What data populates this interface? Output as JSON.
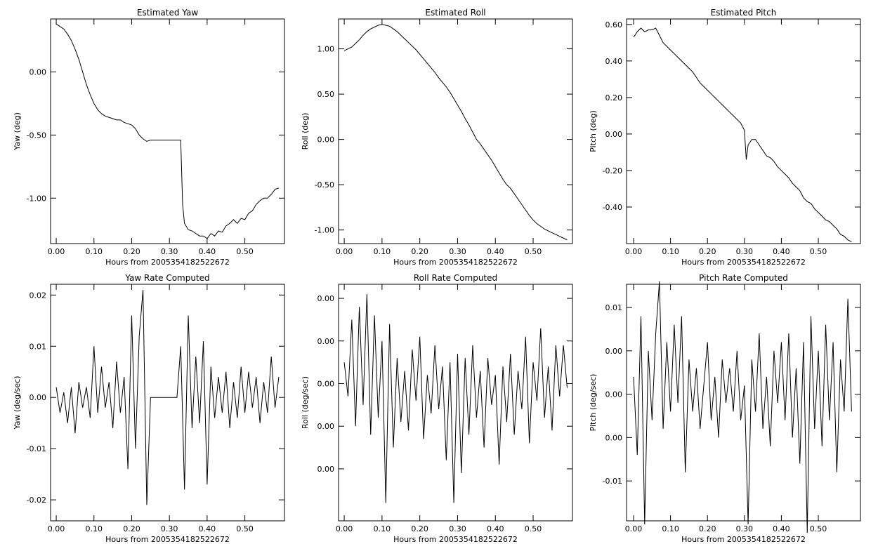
{
  "chart_data": [
    {
      "type": "line",
      "title": "Estimated Yaw",
      "xlabel": "Hours from 2005354182522672",
      "ylabel": "Yaw (deg)",
      "color": "#000000",
      "x": [
        0,
        0.01,
        0.02,
        0.03,
        0.04,
        0.05,
        0.06,
        0.07,
        0.08,
        0.09,
        0.1,
        0.11,
        0.12,
        0.13,
        0.14,
        0.15,
        0.16,
        0.17,
        0.18,
        0.19,
        0.2,
        0.21,
        0.22,
        0.23,
        0.24,
        0.25,
        0.26,
        0.27,
        0.28,
        0.29,
        0.3,
        0.31,
        0.32,
        0.33,
        0.335,
        0.34,
        0.35,
        0.36,
        0.37,
        0.38,
        0.39,
        0.4,
        0.41,
        0.42,
        0.43,
        0.44,
        0.45,
        0.46,
        0.47,
        0.48,
        0.49,
        0.5,
        0.51,
        0.52,
        0.53,
        0.54,
        0.55,
        0.56,
        0.57,
        0.58,
        0.59
      ],
      "values": [
        0.38,
        0.36,
        0.34,
        0.3,
        0.25,
        0.18,
        0.1,
        0.0,
        -0.1,
        -0.18,
        -0.25,
        -0.3,
        -0.33,
        -0.35,
        -0.36,
        -0.37,
        -0.38,
        -0.38,
        -0.4,
        -0.41,
        -0.42,
        -0.45,
        -0.5,
        -0.53,
        -0.55,
        -0.54,
        -0.54,
        -0.54,
        -0.54,
        -0.54,
        -0.54,
        -0.54,
        -0.54,
        -0.54,
        -1.05,
        -1.2,
        -1.25,
        -1.26,
        -1.28,
        -1.3,
        -1.3,
        -1.32,
        -1.28,
        -1.3,
        -1.26,
        -1.27,
        -1.22,
        -1.2,
        -1.17,
        -1.2,
        -1.16,
        -1.17,
        -1.12,
        -1.1,
        -1.05,
        -1.02,
        -1.0,
        -1.0,
        -0.97,
        -0.93,
        -0.92
      ],
      "xlim": [
        -0.015,
        0.605
      ],
      "ylim": [
        -1.36,
        0.42
      ],
      "xticks": [
        {
          "value": 0,
          "label": "0.00"
        },
        {
          "value": 0.1,
          "label": "0.10"
        },
        {
          "value": 0.2,
          "label": "0.20"
        },
        {
          "value": 0.3,
          "label": "0.30"
        },
        {
          "value": 0.4,
          "label": "0.40"
        },
        {
          "value": 0.5,
          "label": "0.50"
        }
      ],
      "yticks": [
        {
          "value": 0,
          "label": "0.00"
        },
        {
          "value": -0.5,
          "label": "-0.50"
        },
        {
          "value": -1,
          "label": "-1.00"
        }
      ]
    },
    {
      "type": "line",
      "title": "Estimated Roll",
      "xlabel": "Hours from 2005354182522672",
      "ylabel": "Roll (deg)",
      "color": "#000000",
      "x": [
        0,
        0.01,
        0.02,
        0.03,
        0.04,
        0.05,
        0.06,
        0.07,
        0.08,
        0.09,
        0.1,
        0.11,
        0.12,
        0.13,
        0.14,
        0.15,
        0.16,
        0.17,
        0.18,
        0.19,
        0.2,
        0.21,
        0.22,
        0.23,
        0.24,
        0.25,
        0.26,
        0.27,
        0.28,
        0.29,
        0.3,
        0.31,
        0.32,
        0.33,
        0.34,
        0.35,
        0.36,
        0.37,
        0.38,
        0.39,
        0.4,
        0.41,
        0.42,
        0.43,
        0.44,
        0.45,
        0.46,
        0.47,
        0.48,
        0.49,
        0.5,
        0.51,
        0.52,
        0.53,
        0.54,
        0.55,
        0.56,
        0.57,
        0.58,
        0.59
      ],
      "values": [
        0.98,
        1.0,
        1.02,
        1.06,
        1.1,
        1.15,
        1.19,
        1.22,
        1.24,
        1.26,
        1.27,
        1.26,
        1.25,
        1.22,
        1.19,
        1.15,
        1.11,
        1.07,
        1.03,
        0.99,
        0.94,
        0.89,
        0.84,
        0.79,
        0.74,
        0.68,
        0.63,
        0.58,
        0.52,
        0.45,
        0.38,
        0.31,
        0.23,
        0.16,
        0.08,
        0.0,
        -0.05,
        -0.11,
        -0.17,
        -0.23,
        -0.3,
        -0.37,
        -0.44,
        -0.5,
        -0.54,
        -0.6,
        -0.66,
        -0.72,
        -0.78,
        -0.84,
        -0.89,
        -0.93,
        -0.96,
        -0.99,
        -1.01,
        -1.03,
        -1.05,
        -1.07,
        -1.09,
        -1.11
      ],
      "xlim": [
        -0.015,
        0.604
      ],
      "ylim": [
        -1.15,
        1.33
      ],
      "xticks": [
        {
          "value": 0,
          "label": "0.00"
        },
        {
          "value": 0.1,
          "label": "0.10"
        },
        {
          "value": 0.2,
          "label": "0.20"
        },
        {
          "value": 0.3,
          "label": "0.30"
        },
        {
          "value": 0.4,
          "label": "0.40"
        },
        {
          "value": 0.5,
          "label": "0.50"
        }
      ],
      "yticks": [
        {
          "value": 1,
          "label": "1.00"
        },
        {
          "value": 0.5,
          "label": "0.50"
        },
        {
          "value": 0,
          "label": "0.00"
        },
        {
          "value": -0.5,
          "label": "-0.50"
        },
        {
          "value": -1,
          "label": "-1.00"
        }
      ]
    },
    {
      "type": "line",
      "title": "Estimated Pitch",
      "xlabel": "Hours from 2005354182522672",
      "ylabel": "Pitch (deg)",
      "color": "#000000",
      "x": [
        0,
        0.01,
        0.02,
        0.03,
        0.04,
        0.05,
        0.06,
        0.07,
        0.08,
        0.09,
        0.1,
        0.11,
        0.12,
        0.13,
        0.14,
        0.15,
        0.16,
        0.17,
        0.18,
        0.19,
        0.2,
        0.21,
        0.22,
        0.23,
        0.24,
        0.25,
        0.26,
        0.27,
        0.28,
        0.29,
        0.3,
        0.305,
        0.31,
        0.32,
        0.33,
        0.34,
        0.35,
        0.36,
        0.37,
        0.38,
        0.39,
        0.4,
        0.41,
        0.42,
        0.43,
        0.44,
        0.45,
        0.46,
        0.47,
        0.48,
        0.49,
        0.5,
        0.51,
        0.52,
        0.53,
        0.54,
        0.55,
        0.56,
        0.57,
        0.58,
        0.59
      ],
      "values": [
        0.53,
        0.56,
        0.58,
        0.56,
        0.57,
        0.57,
        0.58,
        0.54,
        0.5,
        0.48,
        0.46,
        0.44,
        0.42,
        0.4,
        0.38,
        0.36,
        0.34,
        0.31,
        0.28,
        0.26,
        0.24,
        0.22,
        0.2,
        0.18,
        0.16,
        0.14,
        0.12,
        0.1,
        0.08,
        0.06,
        0.02,
        -0.14,
        -0.06,
        -0.03,
        -0.03,
        -0.06,
        -0.09,
        -0.12,
        -0.13,
        -0.15,
        -0.18,
        -0.2,
        -0.22,
        -0.24,
        -0.27,
        -0.29,
        -0.31,
        -0.35,
        -0.37,
        -0.38,
        -0.41,
        -0.43,
        -0.45,
        -0.47,
        -0.48,
        -0.5,
        -0.52,
        -0.55,
        -0.56,
        -0.58,
        -0.59
      ],
      "xlim": [
        -0.019,
        0.614
      ],
      "ylim": [
        -0.6,
        0.63
      ],
      "xticks": [
        {
          "value": 0,
          "label": "0.00"
        },
        {
          "value": 0.1,
          "label": "0.10"
        },
        {
          "value": 0.2,
          "label": "0.20"
        },
        {
          "value": 0.3,
          "label": "0.30"
        },
        {
          "value": 0.4,
          "label": "0.40"
        },
        {
          "value": 0.5,
          "label": "0.50"
        }
      ],
      "yticks": [
        {
          "value": 0.6,
          "label": "0.60"
        },
        {
          "value": 0.4,
          "label": "0.40"
        },
        {
          "value": 0.2,
          "label": "0.20"
        },
        {
          "value": 0,
          "label": "0.00"
        },
        {
          "value": -0.2,
          "label": "-0.20"
        },
        {
          "value": -0.4,
          "label": "-0.40"
        }
      ]
    },
    {
      "type": "line",
      "title": "Yaw Rate Computed",
      "xlabel": "Hours from 2005354182522672",
      "ylabel": "Yaw (deg/sec)",
      "color": "#000000",
      "x": [
        0,
        0.01,
        0.02,
        0.03,
        0.04,
        0.05,
        0.06,
        0.07,
        0.08,
        0.09,
        0.1,
        0.11,
        0.12,
        0.13,
        0.14,
        0.15,
        0.16,
        0.17,
        0.18,
        0.19,
        0.2,
        0.21,
        0.22,
        0.23,
        0.24,
        0.25,
        0.26,
        0.27,
        0.28,
        0.29,
        0.3,
        0.31,
        0.32,
        0.33,
        0.34,
        0.35,
        0.36,
        0.37,
        0.38,
        0.39,
        0.4,
        0.41,
        0.42,
        0.43,
        0.44,
        0.45,
        0.46,
        0.47,
        0.48,
        0.49,
        0.5,
        0.51,
        0.52,
        0.53,
        0.54,
        0.55,
        0.56,
        0.57,
        0.58,
        0.59
      ],
      "values": [
        0.002,
        -0.003,
        0.001,
        -0.005,
        0.002,
        -0.007,
        0.003,
        -0.002,
        0.002,
        -0.004,
        0.01,
        -0.003,
        0.006,
        -0.002,
        0.003,
        -0.006,
        0.007,
        -0.003,
        0.004,
        -0.014,
        0.016,
        -0.01,
        0.012,
        0.021,
        -0.021,
        0,
        0,
        0,
        0,
        0,
        0,
        0,
        0,
        0.01,
        -0.018,
        0.016,
        -0.006,
        0.008,
        -0.005,
        0.011,
        -0.017,
        0.006,
        -0.004,
        0.004,
        -0.003,
        0.005,
        -0.006,
        0.003,
        -0.004,
        0.006,
        -0.003,
        0.005,
        -0.002,
        0.004,
        -0.005,
        0.003,
        -0.003,
        0.008,
        -0.002,
        0.004
      ],
      "xlim": [
        -0.015,
        0.605
      ],
      "ylim": [
        -0.0241,
        0.0221
      ],
      "xticks": [
        {
          "value": 0,
          "label": "0.00"
        },
        {
          "value": 0.1,
          "label": "0.10"
        },
        {
          "value": 0.2,
          "label": "0.20"
        },
        {
          "value": 0.3,
          "label": "0.30"
        },
        {
          "value": 0.4,
          "label": "0.40"
        },
        {
          "value": 0.5,
          "label": "0.50"
        }
      ],
      "yticks": [
        {
          "value": 0.02,
          "label": "0.02"
        },
        {
          "value": 0.01,
          "label": "0.01"
        },
        {
          "value": 0,
          "label": "0.00"
        },
        {
          "value": -0.01,
          "label": "-0.01"
        },
        {
          "value": -0.02,
          "label": "-0.02"
        }
      ]
    },
    {
      "type": "line",
      "title": "Roll Rate Computed",
      "xlabel": "Hours from 2005354182522672",
      "ylabel": "Roll (deg/sec)",
      "color": "#000000",
      "x": [
        0,
        0.01,
        0.02,
        0.03,
        0.04,
        0.05,
        0.06,
        0.07,
        0.08,
        0.09,
        0.1,
        0.11,
        0.12,
        0.13,
        0.14,
        0.15,
        0.16,
        0.17,
        0.18,
        0.19,
        0.2,
        0.21,
        0.22,
        0.23,
        0.24,
        0.25,
        0.26,
        0.27,
        0.28,
        0.29,
        0.3,
        0.31,
        0.32,
        0.33,
        0.34,
        0.35,
        0.36,
        0.37,
        0.38,
        0.39,
        0.4,
        0.41,
        0.42,
        0.43,
        0.44,
        0.45,
        0.46,
        0.47,
        0.48,
        0.49,
        0.5,
        0.51,
        0.52,
        0.53,
        0.54,
        0.55,
        0.56,
        0.57,
        0.58,
        0.59
      ],
      "values": [
        0.0005,
        -0.0003,
        0.0015,
        -0.001,
        0.0018,
        -0.0005,
        0.0021,
        -0.0012,
        0.0016,
        -0.0008,
        0.001,
        -0.0028,
        0.0014,
        -0.0015,
        0.0006,
        -0.0009,
        0.0003,
        -0.0011,
        0.0008,
        -0.0004,
        0.0011,
        -0.0013,
        0.0002,
        -0.0007,
        0.0009,
        -0.0006,
        0.0004,
        -0.0018,
        0.0005,
        -0.0028,
        0.0007,
        -0.0021,
        0.0006,
        -0.0012,
        0.0009,
        -0.0008,
        0.0003,
        -0.0015,
        0.0006,
        -0.0005,
        0.0002,
        -0.0019,
        0.0004,
        -0.0009,
        0.0007,
        -0.0012,
        0.0003,
        -0.0006,
        0.0011,
        -0.0014,
        0.0005,
        -0.0004,
        0.0013,
        -0.0008,
        0.0004,
        -0.0011,
        0.0009,
        -0.0003,
        0.0009,
        -0.0001
      ],
      "xlim": [
        -0.015,
        0.604
      ],
      "ylim": [
        -0.00322,
        0.00233
      ],
      "xticks": [
        {
          "value": 0,
          "label": "0.00"
        },
        {
          "value": 0.1,
          "label": "0.10"
        },
        {
          "value": 0.2,
          "label": "0.20"
        },
        {
          "value": 0.3,
          "label": "0.30"
        },
        {
          "value": 0.4,
          "label": "0.40"
        },
        {
          "value": 0.5,
          "label": "0.50"
        }
      ],
      "yticks": [
        {
          "value": 0.002,
          "label": "0.00"
        },
        {
          "value": 0.001,
          "label": "0.00"
        },
        {
          "value": 0,
          "label": "0.00"
        },
        {
          "value": -0.001,
          "label": "0.00"
        },
        {
          "value": -0.002,
          "label": "0.00"
        }
      ]
    },
    {
      "type": "line",
      "title": "Pitch Rate Computed",
      "xlabel": "Hours from 2005354182522672",
      "ylabel": "Pitch (deg/sec)",
      "color": "#000000",
      "x": [
        0,
        0.01,
        0.02,
        0.03,
        0.04,
        0.05,
        0.06,
        0.07,
        0.08,
        0.09,
        0.1,
        0.11,
        0.12,
        0.13,
        0.14,
        0.15,
        0.16,
        0.17,
        0.18,
        0.19,
        0.2,
        0.21,
        0.22,
        0.23,
        0.24,
        0.25,
        0.26,
        0.27,
        0.28,
        0.29,
        0.3,
        0.31,
        0.32,
        0.33,
        0.34,
        0.35,
        0.36,
        0.37,
        0.38,
        0.39,
        0.4,
        0.41,
        0.42,
        0.43,
        0.44,
        0.45,
        0.46,
        0.47,
        0.48,
        0.49,
        0.5,
        0.51,
        0.52,
        0.53,
        0.54,
        0.55,
        0.56,
        0.57,
        0.58,
        0.59
      ],
      "values": [
        0.002,
        -0.007,
        0.009,
        -0.015,
        0.005,
        -0.003,
        0.007,
        0.013,
        -0.004,
        0.006,
        -0.002,
        0.008,
        -0.001,
        0.009,
        -0.009,
        0.004,
        -0.002,
        0.003,
        -0.004,
        0.001,
        0.006,
        -0.003,
        0.002,
        -0.005,
        0.004,
        -0.001,
        0.003,
        -0.002,
        0.005,
        -0.003,
        0.001,
        -0.015,
        0.004,
        -0.002,
        0.007,
        -0.004,
        0.002,
        -0.006,
        0.005,
        -0.001,
        0.006,
        -0.003,
        0.007,
        -0.005,
        0.003,
        -0.008,
        0.006,
        -0.016,
        0.009,
        -0.004,
        0.005,
        -0.006,
        0.008,
        -0.003,
        0.006,
        -0.009,
        0.004,
        -0.002,
        0.011,
        -0.002
      ],
      "xlim": [
        -0.019,
        0.614
      ],
      "ylim": [
        -0.0146,
        0.01267
      ],
      "xticks": [
        {
          "value": 0,
          "label": "0.00"
        },
        {
          "value": 0.1,
          "label": "0.10"
        },
        {
          "value": 0.2,
          "label": "0.20"
        },
        {
          "value": 0.3,
          "label": "0.30"
        },
        {
          "value": 0.4,
          "label": "0.40"
        },
        {
          "value": 0.5,
          "label": "0.50"
        }
      ],
      "yticks": [
        {
          "value": 0.01,
          "label": "0.01"
        },
        {
          "value": 0.005,
          "label": "0.00"
        },
        {
          "value": 0,
          "label": "0.00"
        },
        {
          "value": -0.005,
          "label": "0.00"
        },
        {
          "value": -0.01,
          "label": "-0.01"
        }
      ]
    }
  ]
}
